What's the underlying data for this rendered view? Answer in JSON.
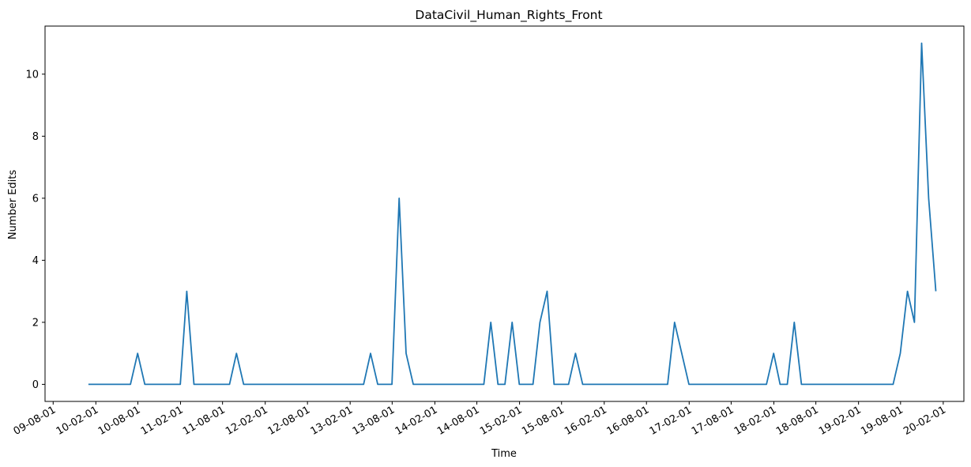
{
  "chart_data": {
    "type": "line",
    "title": "DataCivil_Human_Rights_Front",
    "xlabel": "Time",
    "ylabel": "Number Edits",
    "x_ticks": [
      "09-08-01",
      "10-02-01",
      "10-08-01",
      "11-02-01",
      "11-08-01",
      "12-02-01",
      "12-08-01",
      "13-02-01",
      "13-08-01",
      "14-02-01",
      "14-08-01",
      "15-02-01",
      "15-08-01",
      "16-02-01",
      "16-08-01",
      "17-02-01",
      "17-08-01",
      "18-02-01",
      "18-08-01",
      "19-02-01",
      "19-08-01",
      "20-02-01"
    ],
    "y_ticks": [
      "0",
      "2",
      "4",
      "6",
      "8",
      "10"
    ],
    "ylim": [
      -0.55,
      11.55
    ],
    "xlim": [
      "2009-06-27",
      "2020-04-30"
    ],
    "grid": false,
    "series": [
      {
        "color": "#1f77b4",
        "points": [
          [
            "2009-12-31",
            0
          ],
          [
            "2010-01-31",
            0
          ],
          [
            "2010-02-28",
            0
          ],
          [
            "2010-03-31",
            0
          ],
          [
            "2010-04-30",
            0
          ],
          [
            "2010-05-31",
            0
          ],
          [
            "2010-06-30",
            0
          ],
          [
            "2010-07-31",
            1
          ],
          [
            "2010-08-31",
            0
          ],
          [
            "2010-09-30",
            0
          ],
          [
            "2010-10-31",
            0
          ],
          [
            "2010-11-30",
            0
          ],
          [
            "2010-12-31",
            0
          ],
          [
            "2011-01-31",
            0
          ],
          [
            "2011-02-28",
            3
          ],
          [
            "2011-03-31",
            0
          ],
          [
            "2011-04-30",
            0
          ],
          [
            "2011-05-31",
            0
          ],
          [
            "2011-06-30",
            0
          ],
          [
            "2011-07-31",
            0
          ],
          [
            "2011-08-31",
            0
          ],
          [
            "2011-09-30",
            1
          ],
          [
            "2011-10-31",
            0
          ],
          [
            "2011-11-30",
            0
          ],
          [
            "2011-12-31",
            0
          ],
          [
            "2012-01-31",
            0
          ],
          [
            "2012-02-29",
            0
          ],
          [
            "2012-03-31",
            0
          ],
          [
            "2012-04-30",
            0
          ],
          [
            "2012-05-31",
            0
          ],
          [
            "2012-06-30",
            0
          ],
          [
            "2012-07-31",
            0
          ],
          [
            "2012-08-31",
            0
          ],
          [
            "2012-09-30",
            0
          ],
          [
            "2012-10-31",
            0
          ],
          [
            "2012-11-30",
            0
          ],
          [
            "2012-12-31",
            0
          ],
          [
            "2013-01-31",
            0
          ],
          [
            "2013-02-28",
            0
          ],
          [
            "2013-03-31",
            0
          ],
          [
            "2013-04-30",
            1
          ],
          [
            "2013-05-31",
            0
          ],
          [
            "2013-06-30",
            0
          ],
          [
            "2013-07-31",
            0
          ],
          [
            "2013-08-31",
            6
          ],
          [
            "2013-09-30",
            1
          ],
          [
            "2013-10-31",
            0
          ],
          [
            "2013-11-30",
            0
          ],
          [
            "2013-12-31",
            0
          ],
          [
            "2014-01-31",
            0
          ],
          [
            "2014-02-28",
            0
          ],
          [
            "2014-03-31",
            0
          ],
          [
            "2014-04-30",
            0
          ],
          [
            "2014-05-31",
            0
          ],
          [
            "2014-06-30",
            0
          ],
          [
            "2014-07-31",
            0
          ],
          [
            "2014-08-31",
            0
          ],
          [
            "2014-09-30",
            2
          ],
          [
            "2014-10-31",
            0
          ],
          [
            "2014-11-30",
            0
          ],
          [
            "2014-12-31",
            2
          ],
          [
            "2015-01-31",
            0
          ],
          [
            "2015-02-28",
            0
          ],
          [
            "2015-03-31",
            0
          ],
          [
            "2015-04-30",
            2
          ],
          [
            "2015-05-31",
            3
          ],
          [
            "2015-06-30",
            0
          ],
          [
            "2015-07-31",
            0
          ],
          [
            "2015-08-31",
            0
          ],
          [
            "2015-09-30",
            1
          ],
          [
            "2015-10-31",
            0
          ],
          [
            "2015-11-30",
            0
          ],
          [
            "2015-12-31",
            0
          ],
          [
            "2016-01-31",
            0
          ],
          [
            "2016-02-29",
            0
          ],
          [
            "2016-03-31",
            0
          ],
          [
            "2016-04-30",
            0
          ],
          [
            "2016-05-31",
            0
          ],
          [
            "2016-06-30",
            0
          ],
          [
            "2016-07-31",
            0
          ],
          [
            "2016-08-31",
            0
          ],
          [
            "2016-09-30",
            0
          ],
          [
            "2016-10-31",
            0
          ],
          [
            "2016-11-30",
            2
          ],
          [
            "2016-12-31",
            1
          ],
          [
            "2017-01-31",
            0
          ],
          [
            "2017-02-28",
            0
          ],
          [
            "2017-03-31",
            0
          ],
          [
            "2017-04-30",
            0
          ],
          [
            "2017-05-31",
            0
          ],
          [
            "2017-06-30",
            0
          ],
          [
            "2017-07-31",
            0
          ],
          [
            "2017-08-31",
            0
          ],
          [
            "2017-09-30",
            0
          ],
          [
            "2017-10-31",
            0
          ],
          [
            "2017-11-30",
            0
          ],
          [
            "2017-12-31",
            0
          ],
          [
            "2018-01-31",
            1
          ],
          [
            "2018-02-28",
            0
          ],
          [
            "2018-03-31",
            0
          ],
          [
            "2018-04-30",
            2
          ],
          [
            "2018-05-31",
            0
          ],
          [
            "2018-06-30",
            0
          ],
          [
            "2018-07-31",
            0
          ],
          [
            "2018-08-31",
            0
          ],
          [
            "2018-09-30",
            0
          ],
          [
            "2018-10-31",
            0
          ],
          [
            "2018-11-30",
            0
          ],
          [
            "2018-12-31",
            0
          ],
          [
            "2019-01-31",
            0
          ],
          [
            "2019-02-28",
            0
          ],
          [
            "2019-03-31",
            0
          ],
          [
            "2019-04-30",
            0
          ],
          [
            "2019-05-31",
            0
          ],
          [
            "2019-06-30",
            0
          ],
          [
            "2019-07-31",
            1
          ],
          [
            "2019-08-31",
            3
          ],
          [
            "2019-09-30",
            2
          ],
          [
            "2019-10-31",
            11
          ],
          [
            "2019-11-30",
            6
          ],
          [
            "2019-12-31",
            3
          ]
        ]
      }
    ]
  }
}
